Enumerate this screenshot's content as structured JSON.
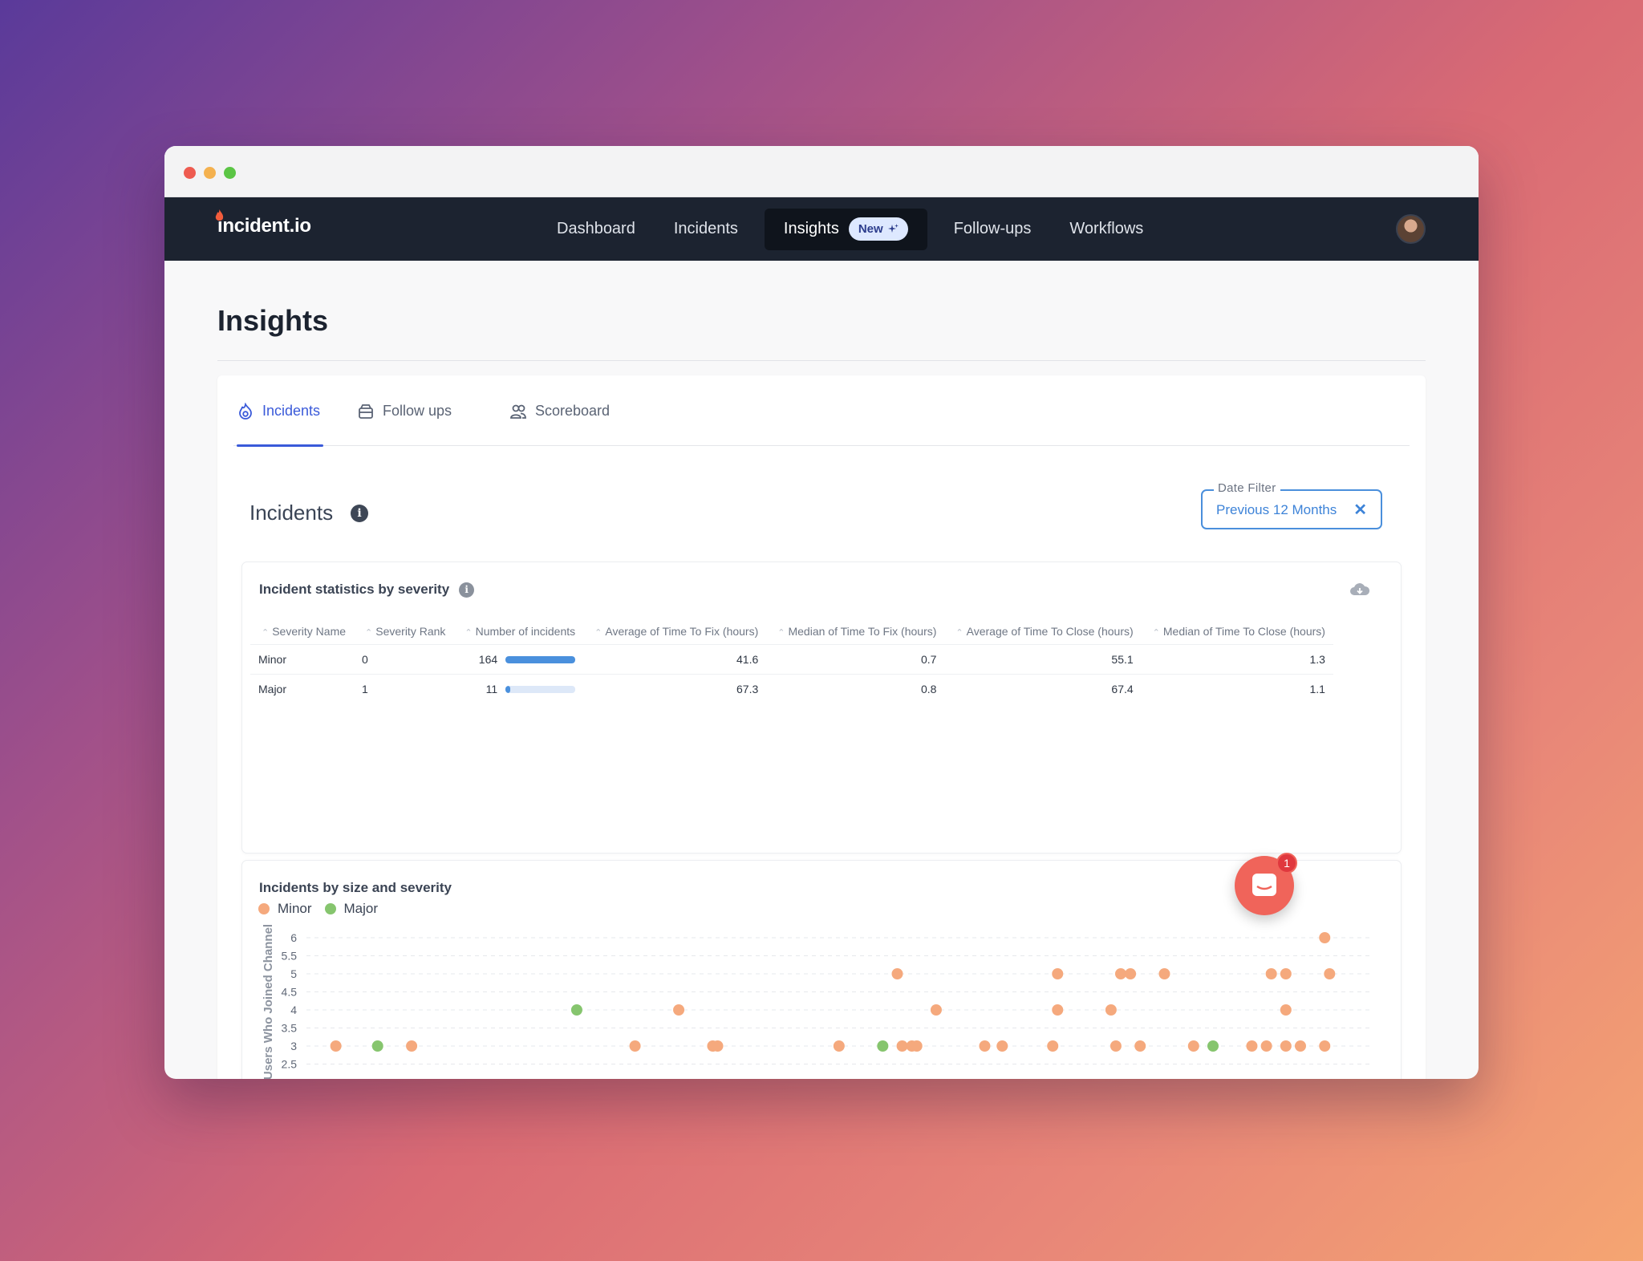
{
  "nav": {
    "logo": "incident.io",
    "items": [
      {
        "label": "Dashboard"
      },
      {
        "label": "Incidents"
      },
      {
        "label": "Insights",
        "badge": "New",
        "active": true
      },
      {
        "label": "Follow-ups"
      },
      {
        "label": "Workflows"
      }
    ]
  },
  "page": {
    "title": "Insights",
    "tabs": [
      {
        "label": "Incidents",
        "icon": "flame-icon",
        "active": true
      },
      {
        "label": "Follow ups",
        "icon": "inbox-icon"
      },
      {
        "label": "Scoreboard",
        "icon": "users-icon"
      }
    ],
    "section_title": "Incidents",
    "date_filter": {
      "legend": "Date Filter",
      "value": "Previous 12 Months"
    }
  },
  "stats_table": {
    "title": "Incident statistics by severity",
    "columns": [
      "Severity Name",
      "Severity Rank",
      "Number of incidents",
      "Average of Time To Fix (hours)",
      "Median of Time To Fix (hours)",
      "Average of Time To Close (hours)",
      "Median of Time To Close (hours)"
    ],
    "rows": [
      {
        "name": "Minor",
        "rank": "0",
        "count": "164",
        "count_fraction": 1.0,
        "avg_fix": "41.6",
        "median_fix": "0.7",
        "avg_close": "55.1",
        "median_close": "1.3"
      },
      {
        "name": "Major",
        "rank": "1",
        "count": "11",
        "count_fraction": 0.067,
        "avg_fix": "67.3",
        "median_fix": "0.8",
        "avg_close": "67.4",
        "median_close": "1.1"
      }
    ]
  },
  "scatter": {
    "title": "Incidents by size and severity",
    "legend": [
      {
        "name": "Minor",
        "color": "#f5a97d"
      },
      {
        "name": "Major",
        "color": "#86c56e"
      }
    ]
  },
  "chart_data": {
    "type": "scatter",
    "title": "Incidents by size and severity",
    "ylabel": "Users Who Joined Channel",
    "ylim": [
      2.5,
      6
    ],
    "yticks": [
      "6",
      "5.5",
      "5",
      "4.5",
      "4",
      "3.5",
      "3",
      "2.5"
    ],
    "series": [
      {
        "name": "Minor",
        "color": "#f5a97d",
        "points": [
          [
            0.022,
            3
          ],
          [
            0.1,
            3
          ],
          [
            0.33,
            3
          ],
          [
            0.375,
            4
          ],
          [
            0.41,
            3
          ],
          [
            0.415,
            3
          ],
          [
            0.54,
            3
          ],
          [
            0.6,
            5
          ],
          [
            0.605,
            3
          ],
          [
            0.615,
            3
          ],
          [
            0.62,
            3
          ],
          [
            0.64,
            4
          ],
          [
            0.69,
            3
          ],
          [
            0.708,
            3
          ],
          [
            0.76,
            3
          ],
          [
            0.765,
            4
          ],
          [
            0.765,
            5
          ],
          [
            0.82,
            4
          ],
          [
            0.825,
            3
          ],
          [
            0.83,
            5
          ],
          [
            0.84,
            5
          ],
          [
            0.85,
            3
          ],
          [
            0.875,
            5
          ],
          [
            0.905,
            3
          ],
          [
            0.965,
            3
          ],
          [
            0.98,
            3
          ],
          [
            0.985,
            5
          ],
          [
            1.0,
            5
          ],
          [
            1.0,
            4
          ],
          [
            1.0,
            3
          ],
          [
            1.015,
            3
          ],
          [
            1.04,
            3
          ],
          [
            1.04,
            6
          ],
          [
            1.045,
            5
          ]
        ]
      },
      {
        "name": "Major",
        "color": "#86c56e",
        "points": [
          [
            0.065,
            3
          ],
          [
            0.27,
            4
          ],
          [
            0.585,
            3
          ],
          [
            0.925,
            3
          ]
        ]
      }
    ]
  },
  "chat": {
    "badge": "1"
  }
}
